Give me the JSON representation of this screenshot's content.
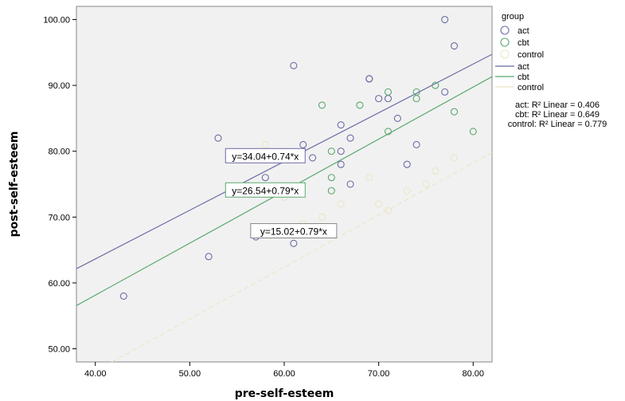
{
  "chart_data": {
    "type": "scatter",
    "xlabel": "pre-self-esteem",
    "ylabel": "post-self-esteem",
    "xlim": [
      38,
      82
    ],
    "ylim": [
      48,
      102
    ],
    "x_ticks": [
      "40.00",
      "50.00",
      "60.00",
      "70.00",
      "80.00"
    ],
    "y_ticks": [
      "50.00",
      "60.00",
      "70.00",
      "80.00",
      "90.00",
      "100.00"
    ],
    "x_tick_values": [
      40,
      50,
      60,
      70,
      80
    ],
    "y_tick_values": [
      50,
      60,
      70,
      80,
      90,
      100
    ],
    "grid": false,
    "legend_position": "right",
    "legend_title": "group",
    "series": [
      {
        "name": "act",
        "color": "#6b6ba8",
        "points": [
          [
            77,
            100
          ],
          [
            78,
            96
          ],
          [
            61,
            93
          ],
          [
            69,
            91
          ],
          [
            69,
            91
          ],
          [
            70,
            88
          ],
          [
            71,
            88
          ],
          [
            77,
            89
          ],
          [
            72,
            85
          ],
          [
            66,
            84
          ],
          [
            53,
            82
          ],
          [
            67,
            82
          ],
          [
            62,
            81
          ],
          [
            74,
            81
          ],
          [
            66,
            80
          ],
          [
            63,
            79
          ],
          [
            66,
            78
          ],
          [
            73,
            78
          ],
          [
            58,
            76
          ],
          [
            67,
            75
          ],
          [
            57,
            67
          ],
          [
            61,
            66
          ],
          [
            52,
            64
          ],
          [
            43,
            58
          ]
        ],
        "fit": {
          "intercept": 34.04,
          "slope": 0.74,
          "label": "y=34.04+0.74*x"
        },
        "r2_label": "act: R² Linear = 0.406"
      },
      {
        "name": "cbt",
        "color": "#5aa870",
        "points": [
          [
            76,
            90
          ],
          [
            71,
            89
          ],
          [
            74,
            89
          ],
          [
            74,
            88
          ],
          [
            64,
            87
          ],
          [
            68,
            87
          ],
          [
            78,
            86
          ],
          [
            71,
            83
          ],
          [
            80,
            83
          ],
          [
            65,
            80
          ],
          [
            65,
            76
          ],
          [
            65,
            74
          ]
        ],
        "fit": {
          "intercept": 26.54,
          "slope": 0.79,
          "label": "y=26.54+0.79*x"
        },
        "r2_label": "cbt: R² Linear = 0.649"
      },
      {
        "name": "control",
        "color": "#ebe6c8",
        "points": [
          [
            58,
            81
          ],
          [
            69,
            76
          ],
          [
            60,
            73
          ],
          [
            66,
            72
          ],
          [
            70,
            72
          ],
          [
            73,
            74
          ],
          [
            76,
            77
          ],
          [
            78,
            79
          ],
          [
            64,
            70
          ],
          [
            71,
            71
          ],
          [
            75,
            75
          ],
          [
            62,
            69
          ]
        ],
        "fit": {
          "intercept": 15.02,
          "slope": 0.79,
          "label": "y=15.02+0.79*x"
        },
        "r2_label": "control: R² Linear = 0.779"
      }
    ]
  }
}
